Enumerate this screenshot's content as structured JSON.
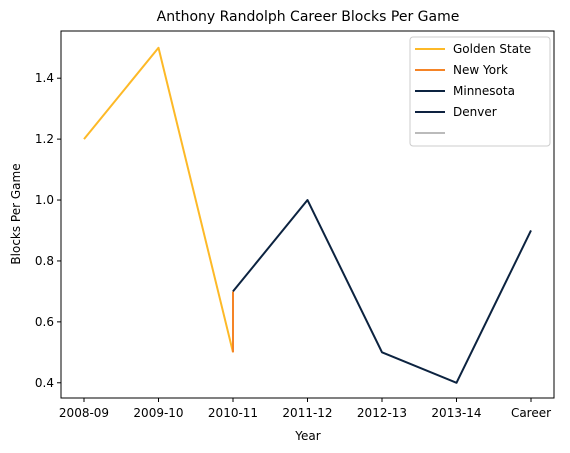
{
  "chart_data": {
    "type": "line",
    "title": "Anthony Randolph Career Blocks Per Game",
    "xlabel": "Year",
    "ylabel": "Blocks Per Game",
    "categories": [
      "2008-09",
      "2009-10",
      "2010-11",
      "2011-12",
      "2012-13",
      "2013-14",
      "Career"
    ],
    "ylim": [
      0.35,
      1.555
    ],
    "yticks": [
      0.4,
      0.6,
      0.8,
      1.0,
      1.2,
      1.4
    ],
    "grid": false,
    "legend_position": "top-right",
    "series": [
      {
        "name": "Golden State",
        "color": "#FDB927",
        "points": [
          [
            0,
            1.2
          ],
          [
            1,
            1.5
          ],
          [
            2,
            0.5
          ]
        ]
      },
      {
        "name": "New York",
        "color": "#F58426",
        "points": [
          [
            2,
            0.5
          ],
          [
            2,
            0.7
          ]
        ]
      },
      {
        "name": "Minnesota",
        "color": "#0C2340",
        "points": [
          [
            2,
            0.7
          ],
          [
            3,
            1.0
          ],
          [
            4,
            0.5
          ],
          [
            5,
            0.4
          ],
          [
            6,
            0.9
          ]
        ]
      },
      {
        "name": "Denver",
        "color": "#0E2240",
        "points": []
      },
      {
        "name": "",
        "color": "#BBBBBB",
        "points": []
      }
    ]
  }
}
